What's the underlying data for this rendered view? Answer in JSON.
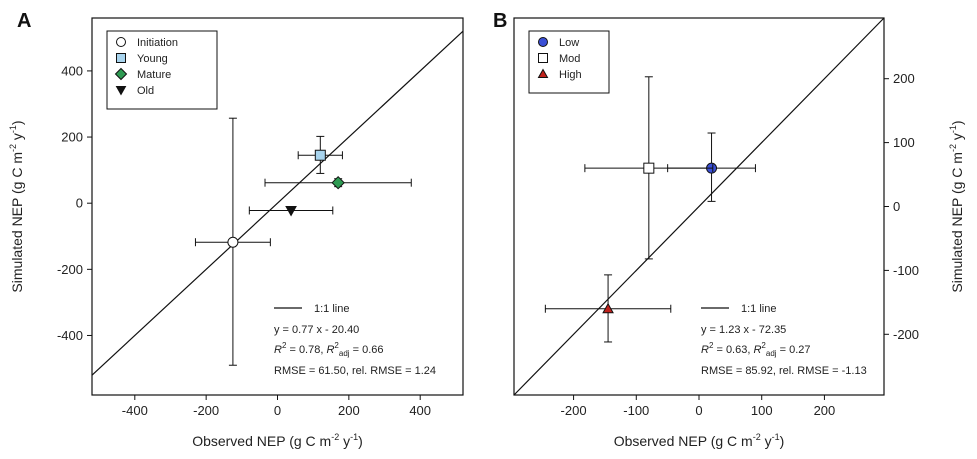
{
  "chart_data": [
    {
      "type": "scatter",
      "panel_label": "A",
      "xlabel": "Observed NEP (g C m",
      "xlabel_sup1": "-2",
      "xlabel_mid": " y",
      "xlabel_sup2": "-1",
      "xlabel_end": ")",
      "ylabel": "Simulated NEP (g C m",
      "ylabel_sup1": "-2",
      "ylabel_mid": " y",
      "ylabel_sup2": "-1",
      "ylabel_end": ")",
      "xlim": [
        -520,
        520
      ],
      "ylim": [
        -580,
        560
      ],
      "xticks": [
        -400,
        -200,
        0,
        200,
        400
      ],
      "xtick_labels": [
        "-400",
        "-200",
        "0",
        "200",
        "400"
      ],
      "yticks": [
        -400,
        -200,
        0,
        200,
        400
      ],
      "ytick_labels": [
        "-400",
        "-200",
        "0",
        "200",
        "400"
      ],
      "yaxis_side": "left",
      "one_to_one_line": true,
      "series": [
        {
          "name": "Initiation",
          "marker": "circle",
          "color": "#ffffff",
          "x": -125,
          "y": -118,
          "xerr": 105,
          "yerr_low": 372,
          "yerr_high": 375
        },
        {
          "name": "Young",
          "marker": "square",
          "color": "#a8d4ee",
          "x": 120,
          "y": 145,
          "xerr": 62,
          "yerr_low": 55,
          "yerr_high": 57
        },
        {
          "name": "Mature",
          "marker": "diamond",
          "color": "#2e9a52",
          "x": 170,
          "y": 62,
          "xerr": 205,
          "yerr_low": 12,
          "yerr_high": 12
        },
        {
          "name": "Old",
          "marker": "triangle-down",
          "color": "#111111",
          "x": 38,
          "y": -22,
          "xerr": 117,
          "yerr_low": 0,
          "yerr_high": 0
        }
      ],
      "legend": {
        "position": "top-left",
        "entries": [
          "Initiation",
          "Young",
          "Mature",
          "Old"
        ]
      },
      "stats": {
        "line_label": "1:1 line",
        "equation": "y = 0.77 x - 20.40",
        "r2_a": "R",
        "r2_b": " = 0.78, ",
        "r2adj_a": "R",
        "r2adj_sub": "adj",
        "r2adj_b": " = 0.66",
        "rmse": "RMSE = 61.50, rel. RMSE = 1.24"
      }
    },
    {
      "type": "scatter",
      "panel_label": "B",
      "xlabel": "Observed NEP (g C m",
      "xlabel_sup1": "-2",
      "xlabel_mid": " y",
      "xlabel_sup2": "-1",
      "xlabel_end": ")",
      "ylabel": "Simulated NEP (g C m",
      "ylabel_sup1": "-2",
      "ylabel_mid": " y",
      "ylabel_sup2": "-1",
      "ylabel_end": ")",
      "xlim": [
        -295,
        295
      ],
      "ylim": [
        -295,
        295
      ],
      "xticks": [
        -200,
        -100,
        0,
        100,
        200
      ],
      "xtick_labels": [
        "-200",
        "-100",
        "0",
        "100",
        "200"
      ],
      "yticks": [
        -200,
        -100,
        0,
        100,
        200
      ],
      "ytick_labels": [
        "-200",
        "-100",
        "0",
        "100",
        "200"
      ],
      "yaxis_side": "right",
      "one_to_one_line": true,
      "series": [
        {
          "name": "Low",
          "marker": "circle",
          "color": "#3a4fd6",
          "x": 20,
          "y": 60,
          "xerr": 70,
          "yerr_low": 52,
          "yerr_high": 55
        },
        {
          "name": "Mod",
          "marker": "square",
          "color": "#ffffff",
          "x": -80,
          "y": 60,
          "xerr": 102,
          "yerr_low": 142,
          "yerr_high": 143
        },
        {
          "name": "High",
          "marker": "triangle-up",
          "color": "#c0221c",
          "x": -145,
          "y": -160,
          "xerr": 100,
          "yerr_low": 52,
          "yerr_high": 53
        }
      ],
      "legend": {
        "position": "top-left",
        "entries": [
          "Low",
          "Mod",
          "High"
        ]
      },
      "stats": {
        "line_label": "1:1 line",
        "equation": "y = 1.23 x - 72.35",
        "r2_a": "R",
        "r2_b": " = 0.63, ",
        "r2adj_a": "R",
        "r2adj_sub": "adj",
        "r2adj_b": " = 0.27",
        "rmse": "RMSE = 85.92, rel. RMSE = -1.13"
      }
    }
  ]
}
